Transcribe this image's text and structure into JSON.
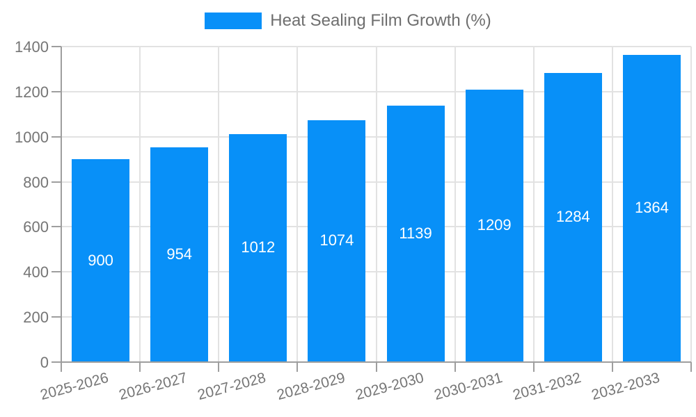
{
  "legend": {
    "label": "Heat Sealing Film Growth (%)"
  },
  "chart_data": {
    "type": "bar",
    "title": "Heat Sealing Film Growth (%)",
    "categories": [
      "2025-2026",
      "2026-2027",
      "2027-2028",
      "2028-2029",
      "2029-2030",
      "2030-2031",
      "2031-2032",
      "2032-2033"
    ],
    "values": [
      900,
      954,
      1012,
      1074,
      1139,
      1209,
      1284,
      1364
    ],
    "xlabel": "",
    "ylabel": "",
    "ylim": [
      0,
      1400
    ],
    "yticks": [
      0,
      200,
      400,
      600,
      800,
      1000,
      1200,
      1400
    ],
    "grid": true,
    "legend_position": "top-center",
    "x_label_rotation_deg": -15,
    "bar_value_label_position": "center",
    "colors": {
      "bar": "#0890F8",
      "bar_label": "#FFFFFF",
      "axis": "#9E9E9E",
      "grid": "#E2E2E2",
      "tick_label": "#757575",
      "legend_text": "#6E6E6E",
      "background": "#FFFFFF"
    }
  }
}
